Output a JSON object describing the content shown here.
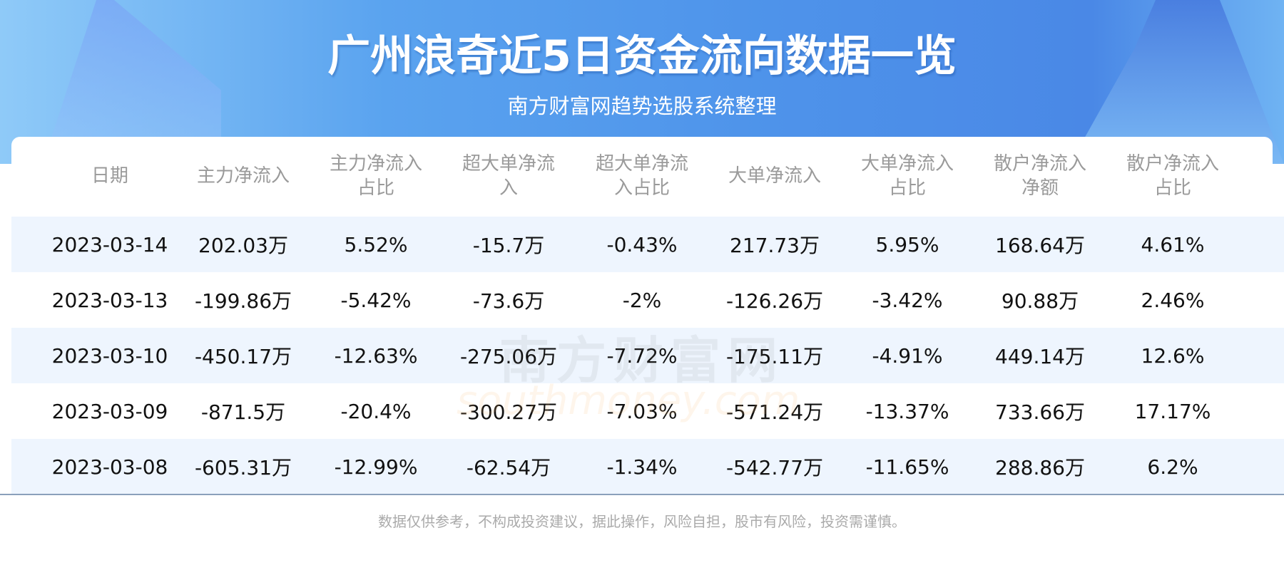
{
  "header": {
    "title": "广州浪奇近5日资金流向数据一览",
    "subtitle": "南方财富网趋势选股系统整理"
  },
  "table": {
    "columns": [
      [
        "日期",
        ""
      ],
      [
        "主力净流入",
        ""
      ],
      [
        "主力净流入",
        "占比"
      ],
      [
        "超大单净流",
        "入"
      ],
      [
        "超大单净流",
        "入占比"
      ],
      [
        "大单净流入",
        ""
      ],
      [
        "大单净流入",
        "占比"
      ],
      [
        "散户净流入",
        "净额"
      ],
      [
        "散户净流入",
        "占比"
      ]
    ],
    "rows": [
      [
        "2023-03-14",
        "202.03万",
        "5.52%",
        "-15.7万",
        "-0.43%",
        "217.73万",
        "5.95%",
        "168.64万",
        "4.61%"
      ],
      [
        "2023-03-13",
        "-199.86万",
        "-5.42%",
        "-73.6万",
        "-2%",
        "-126.26万",
        "-3.42%",
        "90.88万",
        "2.46%"
      ],
      [
        "2023-03-10",
        "-450.17万",
        "-12.63%",
        "-275.06万",
        "-7.72%",
        "-175.11万",
        "-4.91%",
        "449.14万",
        "12.6%"
      ],
      [
        "2023-03-09",
        "-871.5万",
        "-20.4%",
        "-300.27万",
        "-7.03%",
        "-571.24万",
        "-13.37%",
        "733.66万",
        "17.17%"
      ],
      [
        "2023-03-08",
        "-605.31万",
        "-12.99%",
        "-62.54万",
        "-1.34%",
        "-542.77万",
        "-11.65%",
        "288.86万",
        "6.2%"
      ]
    ]
  },
  "watermark": {
    "cn": "南方财富网",
    "en": "southmoney.com"
  },
  "footer": "数据仅供参考，不构成投资建议，据此操作，风险自担，股市有风险，投资需谨慎。",
  "colors": {
    "header_blue": "#4e93ea",
    "row_alt": "#eef5fe"
  }
}
